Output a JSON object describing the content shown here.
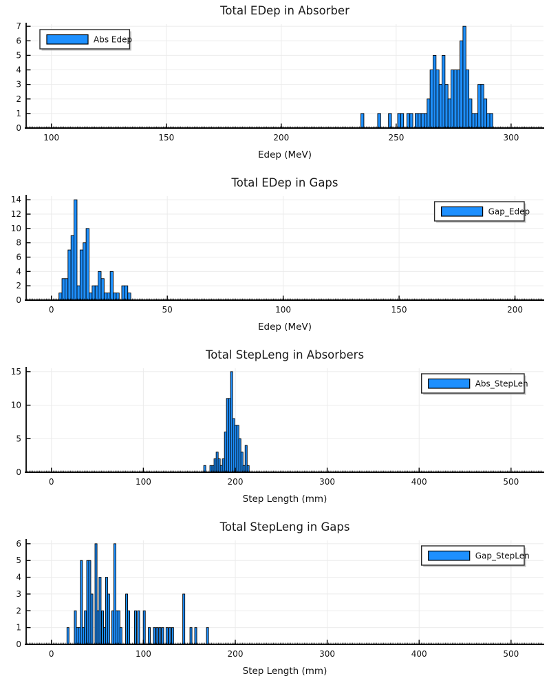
{
  "colors": {
    "background": "#ffffff",
    "bar_fill": "#1e90ff",
    "bar_edge": "#000000",
    "grid": "#ebebeb",
    "axis": "#000000",
    "title": "#1a1a1a",
    "tick_label": "#111111",
    "legend_border": "#2b2b2b",
    "legend_shadow": "#999999",
    "legend_bg": "#ffffff"
  },
  "chart_data": [
    {
      "id": "abs-edep",
      "type": "bar",
      "title": "Total EDep in Absorber",
      "xlabel": "Edep (MeV)",
      "ylabel": "",
      "legend": {
        "label": "Abs Edep",
        "position": "top-left"
      },
      "grid": true,
      "xlim": [
        89,
        314.1
      ],
      "ylim": [
        0,
        7.15
      ],
      "xticks": [
        100,
        150,
        200,
        250,
        300
      ],
      "yticks": [
        0,
        1,
        2,
        3,
        4,
        5,
        6,
        7
      ],
      "bin_width": 1.3,
      "bars": [
        [
          235.3,
          1
        ],
        [
          242.6,
          1
        ],
        [
          247.3,
          1
        ],
        [
          251.3,
          1
        ],
        [
          252.6,
          1
        ],
        [
          255.3,
          1
        ],
        [
          256.6,
          1
        ],
        [
          258.9,
          1
        ],
        [
          260.2,
          1
        ],
        [
          261.5,
          1
        ],
        [
          262.8,
          1
        ],
        [
          264.1,
          2
        ],
        [
          265.4,
          4
        ],
        [
          266.7,
          5
        ],
        [
          268.0,
          4
        ],
        [
          269.3,
          3
        ],
        [
          270.6,
          5
        ],
        [
          271.9,
          3
        ],
        [
          273.2,
          2
        ],
        [
          274.5,
          4
        ],
        [
          275.8,
          4
        ],
        [
          277.1,
          4
        ],
        [
          278.4,
          6
        ],
        [
          279.7,
          7
        ],
        [
          281.0,
          4
        ],
        [
          282.3,
          2
        ],
        [
          283.6,
          1
        ],
        [
          284.9,
          1
        ],
        [
          286.2,
          3
        ],
        [
          287.5,
          3
        ],
        [
          288.8,
          2
        ],
        [
          290.1,
          1
        ],
        [
          291.4,
          1
        ]
      ]
    },
    {
      "id": "gap-edep",
      "type": "bar",
      "title": "Total EDep in Gaps",
      "xlabel": "Edep (MeV)",
      "ylabel": "",
      "legend": {
        "label": "Gap_Edep",
        "position": "top-right"
      },
      "grid": true,
      "xlim": [
        -10.9,
        212.3
      ],
      "ylim": [
        0,
        14.5
      ],
      "xticks": [
        0,
        50,
        100,
        150,
        200
      ],
      "yticks": [
        0,
        2,
        4,
        6,
        8,
        10,
        12,
        14
      ],
      "bin_width": 1.29,
      "bars": [
        [
          3.9,
          1
        ],
        [
          5.2,
          3
        ],
        [
          6.5,
          3
        ],
        [
          7.8,
          7
        ],
        [
          9.1,
          9
        ],
        [
          10.4,
          14
        ],
        [
          11.7,
          2
        ],
        [
          13.0,
          7
        ],
        [
          14.3,
          8
        ],
        [
          15.6,
          10
        ],
        [
          16.9,
          1
        ],
        [
          18.2,
          2
        ],
        [
          19.5,
          2
        ],
        [
          20.8,
          4
        ],
        [
          22.1,
          3
        ],
        [
          23.4,
          1
        ],
        [
          24.7,
          1
        ],
        [
          26.0,
          4
        ],
        [
          27.3,
          1
        ],
        [
          28.6,
          1
        ],
        [
          31.0,
          2
        ],
        [
          32.3,
          2
        ],
        [
          33.6,
          1
        ]
      ]
    },
    {
      "id": "abs-steplen",
      "type": "bar",
      "title": "Total StepLeng in Absorbers",
      "xlabel": "Step Length (mm)",
      "ylabel": "",
      "legend": {
        "label": "Abs_StepLen",
        "position": "top-right"
      },
      "grid": true,
      "xlim": [
        -27.5,
        535.3
      ],
      "ylim": [
        0,
        15.5
      ],
      "xticks": [
        0,
        100,
        200,
        300,
        400,
        500
      ],
      "yticks": [
        0,
        5,
        10,
        15
      ],
      "bin_width": 2.25,
      "bars": [
        [
          166.8,
          1
        ],
        [
          173.5,
          1
        ],
        [
          175.8,
          1
        ],
        [
          178.0,
          2
        ],
        [
          180.3,
          3
        ],
        [
          182.5,
          2
        ],
        [
          184.8,
          1
        ],
        [
          187.0,
          2
        ],
        [
          189.3,
          6
        ],
        [
          191.5,
          11
        ],
        [
          193.8,
          11
        ],
        [
          196.0,
          15
        ],
        [
          198.3,
          8
        ],
        [
          200.5,
          7
        ],
        [
          202.8,
          7
        ],
        [
          205.0,
          5
        ],
        [
          207.3,
          3
        ],
        [
          209.5,
          1
        ],
        [
          211.8,
          4
        ],
        [
          214.0,
          1
        ]
      ]
    },
    {
      "id": "gap-steplen",
      "type": "bar",
      "title": "Total StepLeng in Gaps",
      "xlabel": "Step Length (mm)",
      "ylabel": "",
      "legend": {
        "label": "Gap_StepLen",
        "position": "top-right"
      },
      "grid": true,
      "xlim": [
        -27.5,
        535.3
      ],
      "ylim": [
        0,
        6.2
      ],
      "xticks": [
        0,
        100,
        200,
        300,
        400,
        500
      ],
      "yticks": [
        0,
        1,
        2,
        3,
        4,
        5,
        6
      ],
      "bin_width": 2.25,
      "bars": [
        [
          18.0,
          1
        ],
        [
          26.0,
          2
        ],
        [
          28.2,
          1
        ],
        [
          30.4,
          1
        ],
        [
          32.6,
          5
        ],
        [
          34.8,
          1
        ],
        [
          37.0,
          2
        ],
        [
          39.5,
          5
        ],
        [
          41.7,
          5
        ],
        [
          44.0,
          3
        ],
        [
          48.5,
          6
        ],
        [
          50.7,
          2
        ],
        [
          52.9,
          4
        ],
        [
          55.6,
          2
        ],
        [
          57.8,
          1
        ],
        [
          60.0,
          4
        ],
        [
          62.2,
          3
        ],
        [
          66.8,
          2
        ],
        [
          69.0,
          6
        ],
        [
          71.2,
          2
        ],
        [
          73.4,
          2
        ],
        [
          75.6,
          1
        ],
        [
          81.8,
          3
        ],
        [
          84.0,
          2
        ],
        [
          91.5,
          2
        ],
        [
          94.8,
          2
        ],
        [
          101.0,
          2
        ],
        [
          106.5,
          1
        ],
        [
          112.0,
          1
        ],
        [
          115.0,
          1
        ],
        [
          118.0,
          1
        ],
        [
          121.0,
          1
        ],
        [
          125.8,
          1
        ],
        [
          128.8,
          1
        ],
        [
          131.8,
          1
        ],
        [
          144.0,
          3
        ],
        [
          151.8,
          1
        ],
        [
          157.0,
          1
        ],
        [
          169.8,
          1
        ]
      ]
    }
  ]
}
